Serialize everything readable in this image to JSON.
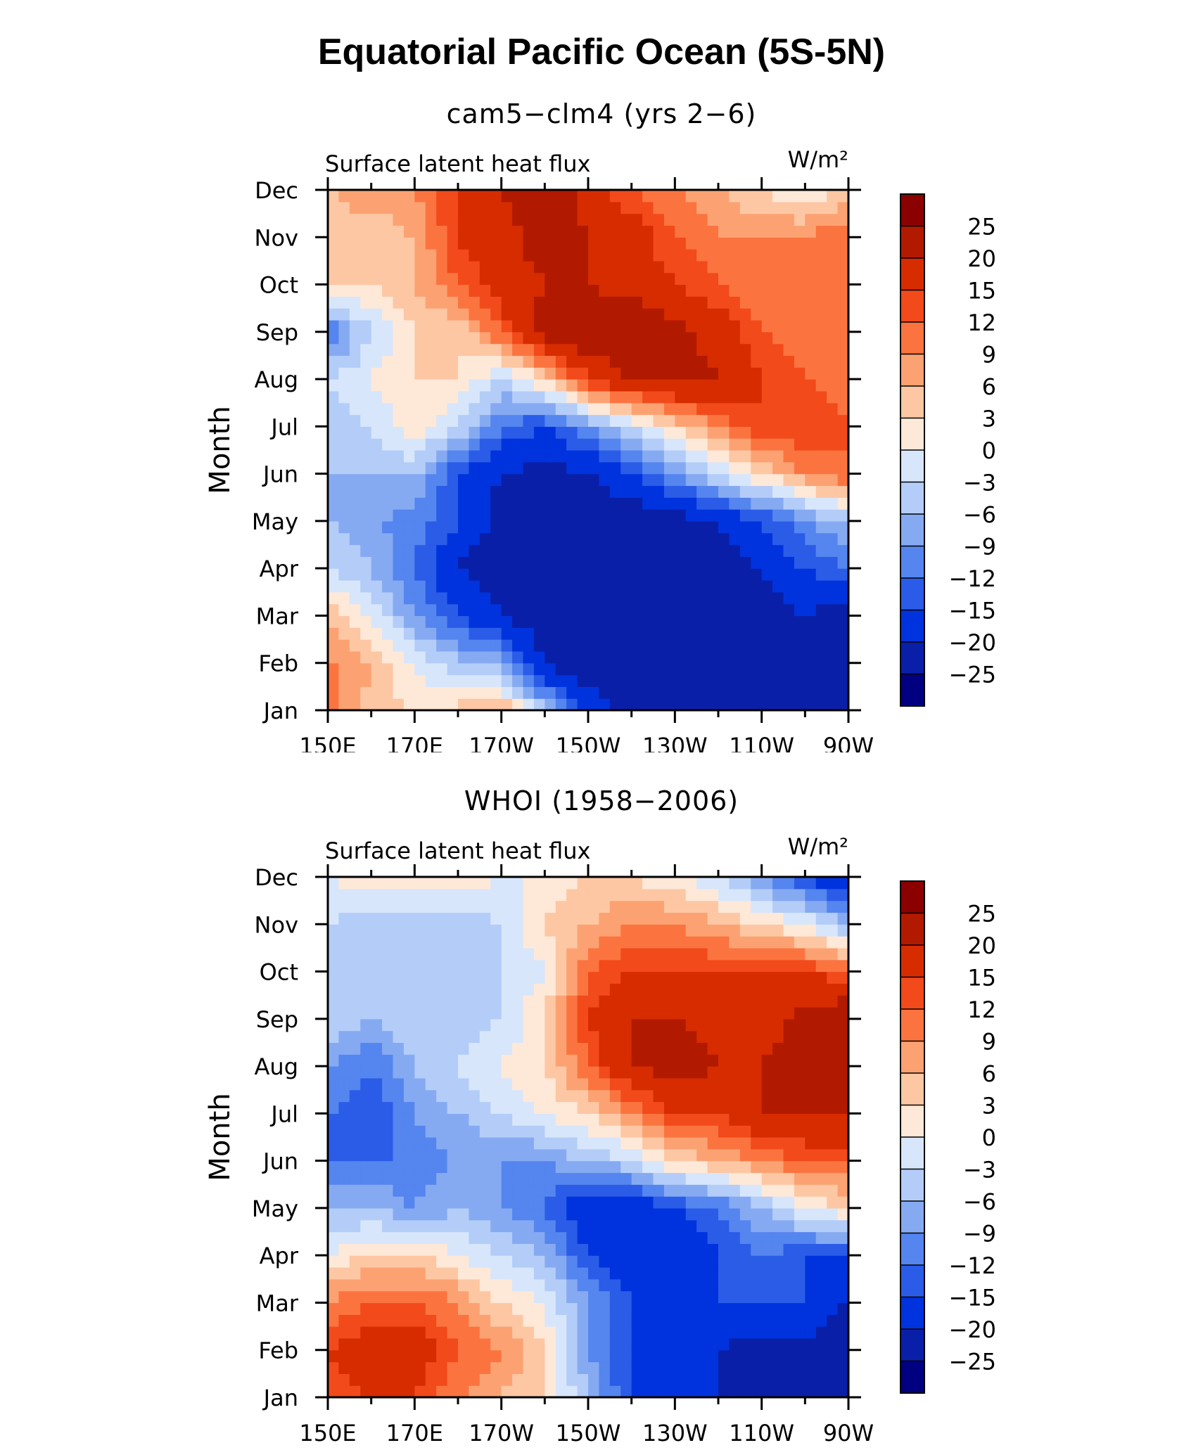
{
  "figure": {
    "title": "Equatorial Pacific Ocean (5S-5N)"
  },
  "panels": [
    {
      "title": "cam5−clm4 (yrs 2−6)",
      "variable": "Surface latent heat flux",
      "units": "W/m²"
    },
    {
      "title": "WHOI (1958−2006)",
      "variable": "Surface latent heat flux",
      "units": "W/m²"
    }
  ],
  "axes": {
    "ylabel": "Month",
    "xticks": [
      "150E",
      "170E",
      "170W",
      "150W",
      "130W",
      "110W",
      "90W"
    ],
    "yticks": [
      "Jan",
      "Feb",
      "Mar",
      "Apr",
      "May",
      "Jun",
      "Jul",
      "Aug",
      "Sep",
      "Oct",
      "Nov",
      "Dec"
    ]
  },
  "colorbar": {
    "labels": [
      "25",
      "20",
      "15",
      "12",
      "9",
      "6",
      "3",
      "0",
      "−3",
      "−6",
      "−9",
      "−12",
      "−15",
      "−20",
      "−25"
    ],
    "colors": [
      "#8b0000",
      "#b21a00",
      "#d62c00",
      "#f24a1a",
      "#fb7440",
      "#fca272",
      "#fdc7a4",
      "#fee8d8",
      "#d7e6fb",
      "#b3cdf8",
      "#86aaf2",
      "#5585ee",
      "#2b5ce8",
      "#0033dd",
      "#0a1fa8",
      "#000080"
    ]
  },
  "chart_data": [
    {
      "type": "heatmap",
      "title": "cam5−clm4 (yrs 2−6)",
      "subtitle": "Surface latent heat flux",
      "units": "W/m²",
      "ylabel": "Month",
      "x": [
        "150E",
        "160E",
        "170E",
        "180",
        "170W",
        "160W",
        "150W",
        "140W",
        "130W",
        "120W",
        "110W",
        "100W",
        "90W"
      ],
      "y": [
        "Jan",
        "Feb",
        "Mar",
        "Apr",
        "May",
        "Jun",
        "Jul",
        "Aug",
        "Sep",
        "Oct",
        "Nov",
        "Dec"
      ],
      "z": [
        [
          10,
          5,
          2,
          4,
          6,
          -5,
          -15,
          -22,
          -25,
          -25,
          -25,
          -25,
          -25
        ],
        [
          10,
          6,
          0,
          -5,
          -6,
          -20,
          -25,
          -25,
          -25,
          -25,
          -25,
          -20,
          -25
        ],
        [
          5,
          0,
          -9,
          -15,
          -20,
          -25,
          -25,
          -25,
          -25,
          -25,
          -22,
          -20,
          -25
        ],
        [
          -3,
          -6,
          -12,
          -20,
          -25,
          -25,
          -25,
          -25,
          -25,
          -22,
          -20,
          -15,
          -12
        ],
        [
          -6,
          -9,
          -10,
          -15,
          -22,
          -25,
          -25,
          -25,
          -22,
          -20,
          -15,
          -10,
          -5
        ],
        [
          -6,
          -6,
          -6,
          -15,
          -20,
          -22,
          -20,
          -15,
          -9,
          -3,
          3,
          9,
          12
        ],
        [
          -6,
          -3,
          3,
          -3,
          -12,
          -15,
          -9,
          -3,
          3,
          9,
          15,
          15,
          12
        ],
        [
          -3,
          0,
          3,
          3,
          -3,
          3,
          15,
          20,
          22,
          20,
          15,
          12,
          9
        ],
        [
          -12,
          -3,
          3,
          3,
          12,
          22,
          25,
          25,
          22,
          18,
          12,
          9,
          9
        ],
        [
          3,
          3,
          6,
          12,
          18,
          20,
          20,
          18,
          15,
          12,
          9,
          9,
          12
        ],
        [
          3,
          3,
          6,
          15,
          18,
          22,
          20,
          18,
          12,
          9,
          9,
          9,
          12
        ],
        [
          6,
          9,
          9,
          15,
          20,
          25,
          18,
          12,
          9,
          6,
          3,
          0,
          3
        ]
      ],
      "levels": [
        -25,
        -20,
        -15,
        -12,
        -9,
        -6,
        -3,
        0,
        3,
        6,
        9,
        12,
        15,
        20,
        25
      ]
    },
    {
      "type": "heatmap",
      "title": "WHOI (1958−2006)",
      "subtitle": "Surface latent heat flux",
      "units": "W/m²",
      "ylabel": "Month",
      "x": [
        "150E",
        "160E",
        "170E",
        "180",
        "170W",
        "160W",
        "150W",
        "140W",
        "130W",
        "120W",
        "110W",
        "100W",
        "90W"
      ],
      "y": [
        "Jan",
        "Feb",
        "Mar",
        "Apr",
        "May",
        "Jun",
        "Jul",
        "Aug",
        "Sep",
        "Oct",
        "Nov",
        "Dec"
      ],
      "z": [
        [
          12,
          15,
          15,
          9,
          6,
          3,
          -6,
          -15,
          -20,
          -20,
          -22,
          -25,
          -25
        ],
        [
          15,
          18,
          18,
          12,
          9,
          3,
          -9,
          -15,
          -20,
          -20,
          -22,
          -22,
          -25
        ],
        [
          9,
          12,
          12,
          9,
          3,
          0,
          -9,
          -15,
          -15,
          -15,
          -15,
          -15,
          -20
        ],
        [
          0,
          3,
          3,
          0,
          -3,
          -6,
          -15,
          -20,
          -20,
          -15,
          -12,
          -15,
          -15
        ],
        [
          -6,
          -6,
          -9,
          -6,
          -9,
          -12,
          -20,
          -20,
          -15,
          -12,
          -6,
          0,
          3
        ],
        [
          -12,
          -12,
          -12,
          -9,
          -9,
          -9,
          -6,
          -3,
          3,
          6,
          9,
          12,
          12
        ],
        [
          -12,
          -15,
          -9,
          -6,
          -3,
          0,
          3,
          9,
          15,
          15,
          20,
          20,
          20
        ],
        [
          -9,
          -12,
          -6,
          -3,
          0,
          3,
          12,
          20,
          22,
          20,
          20,
          22,
          22
        ],
        [
          -3,
          -6,
          -3,
          -6,
          -3,
          3,
          15,
          20,
          20,
          18,
          18,
          22,
          25
        ],
        [
          -3,
          -3,
          -6,
          -6,
          -3,
          0,
          12,
          15,
          15,
          15,
          15,
          15,
          12
        ],
        [
          -3,
          -6,
          -6,
          -6,
          -3,
          3,
          6,
          9,
          9,
          6,
          3,
          0,
          -6
        ],
        [
          0,
          3,
          3,
          3,
          0,
          0,
          3,
          3,
          0,
          -3,
          -9,
          -15,
          -20
        ]
      ],
      "levels": [
        -25,
        -20,
        -15,
        -12,
        -9,
        -6,
        -3,
        0,
        3,
        6,
        9,
        12,
        15,
        20,
        25
      ]
    }
  ]
}
